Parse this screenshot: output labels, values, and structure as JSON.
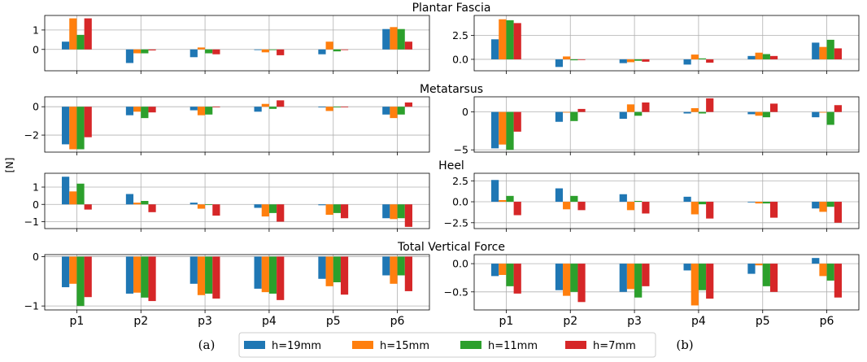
{
  "chart_data": {
    "type": "bar",
    "ylabel": "[N]",
    "categories": [
      "p1",
      "p2",
      "p3",
      "p4",
      "p5",
      "p6"
    ],
    "legend": [
      "h=19mm",
      "h=15mm",
      "h=11mm",
      "h=7mm"
    ],
    "colors": [
      "#1f77b4",
      "#ff7f0e",
      "#2ca02c",
      "#d62728"
    ],
    "panel_labels": [
      "(a)",
      "(b)"
    ],
    "rows": [
      {
        "title": "Plantar Fascia",
        "left": {
          "ylim": [
            -1.1,
            1.75
          ],
          "yticks": [
            0,
            1
          ],
          "tick_labels": [
            "0",
            "1"
          ],
          "series": [
            [
              0.4,
              -0.7,
              -0.4,
              0.0,
              -0.25,
              1.05
            ],
            [
              1.6,
              -0.2,
              0.1,
              -0.15,
              0.4,
              1.15
            ],
            [
              0.75,
              -0.2,
              -0.2,
              0.0,
              -0.1,
              1.05
            ],
            [
              1.6,
              -0.05,
              -0.25,
              -0.3,
              0.0,
              0.4
            ]
          ]
        },
        "right": {
          "ylim": [
            -1.2,
            4.6
          ],
          "yticks": [
            0,
            2.5
          ],
          "tick_labels": [
            "0.0",
            "2.5"
          ],
          "series": [
            [
              2.1,
              -0.8,
              -0.4,
              -0.55,
              0.35,
              1.75
            ],
            [
              4.2,
              0.3,
              -0.3,
              0.5,
              0.7,
              1.3
            ],
            [
              4.1,
              -0.1,
              -0.15,
              0.1,
              0.55,
              2.05
            ],
            [
              3.8,
              -0.05,
              -0.25,
              -0.35,
              0.35,
              1.15
            ]
          ]
        }
      },
      {
        "title": "Metatarsus",
        "left": {
          "ylim": [
            -3.2,
            0.7
          ],
          "yticks": [
            -2,
            0
          ],
          "tick_labels": [
            "−2",
            "0"
          ],
          "series": [
            [
              -2.65,
              -0.6,
              -0.25,
              -0.35,
              -0.05,
              -0.55
            ],
            [
              -3.0,
              -0.35,
              -0.6,
              0.2,
              -0.3,
              -0.8
            ],
            [
              -3.0,
              -0.8,
              -0.55,
              -0.15,
              -0.05,
              -0.55
            ],
            [
              -2.15,
              -0.4,
              0.0,
              0.45,
              0.0,
              0.3
            ]
          ]
        },
        "right": {
          "ylim": [
            -5.3,
            2.0
          ],
          "yticks": [
            -5,
            0
          ],
          "tick_labels": [
            "−5",
            "0"
          ],
          "series": [
            [
              -4.8,
              -1.3,
              -0.9,
              -0.2,
              -0.3,
              -0.7
            ],
            [
              -4.3,
              -0.05,
              1.0,
              0.5,
              -0.5,
              -0.05
            ],
            [
              -5.0,
              -1.2,
              -0.5,
              -0.2,
              -0.7,
              -1.7
            ],
            [
              -2.6,
              0.4,
              1.25,
              1.8,
              1.1,
              0.9
            ]
          ]
        }
      },
      {
        "title": "Heel",
        "left": {
          "ylim": [
            -1.4,
            1.8
          ],
          "yticks": [
            -1,
            0,
            1
          ],
          "tick_labels": [
            "−1",
            "0",
            "1"
          ],
          "series": [
            [
              1.6,
              0.6,
              0.1,
              -0.2,
              -0.05,
              -0.8
            ],
            [
              0.75,
              0.1,
              -0.25,
              -0.7,
              -0.6,
              -0.85
            ],
            [
              1.2,
              0.2,
              0.0,
              -0.5,
              -0.5,
              -0.8
            ],
            [
              -0.3,
              -0.45,
              -0.65,
              -1.0,
              -0.8,
              -1.3
            ]
          ]
        },
        "right": {
          "ylim": [
            -3.2,
            3.4
          ],
          "yticks": [
            -2.5,
            0,
            2.5
          ],
          "tick_labels": [
            "−2.5",
            "0.0",
            "2.5"
          ],
          "series": [
            [
              2.6,
              1.6,
              0.9,
              0.6,
              0.0,
              -0.8
            ],
            [
              0.2,
              -0.9,
              -1.0,
              -1.5,
              -0.2,
              -1.2
            ],
            [
              0.7,
              0.7,
              0.1,
              -0.3,
              -0.2,
              -0.6
            ],
            [
              -1.6,
              -1.0,
              -1.4,
              -2.0,
              -1.9,
              -2.5
            ]
          ]
        }
      },
      {
        "title": "Total Vertical Force",
        "left": {
          "ylim": [
            -1.08,
            0.04
          ],
          "yticks": [
            -1,
            0
          ],
          "tick_labels": [
            "−1",
            "0"
          ],
          "series": [
            [
              -0.62,
              -0.75,
              -0.55,
              -0.65,
              -0.45,
              -0.38
            ],
            [
              -0.55,
              -0.73,
              -0.78,
              -0.72,
              -0.6,
              -0.55
            ],
            [
              -1.0,
              -0.83,
              -0.75,
              -0.75,
              -0.52,
              -0.38
            ],
            [
              -0.82,
              -0.9,
              -0.85,
              -0.88,
              -0.77,
              -0.7
            ]
          ]
        },
        "right": {
          "ylim": [
            -0.82,
            0.16
          ],
          "yticks": [
            -0.5,
            0.0
          ],
          "tick_labels": [
            "−0.5",
            "0.0"
          ],
          "series": [
            [
              -0.22,
              -0.47,
              -0.5,
              -0.12,
              -0.18,
              0.1
            ],
            [
              -0.2,
              -0.57,
              -0.45,
              -0.74,
              -0.03,
              -0.22
            ],
            [
              -0.4,
              -0.5,
              -0.6,
              -0.47,
              -0.4,
              -0.3
            ],
            [
              -0.53,
              -0.68,
              -0.4,
              -0.62,
              -0.5,
              -0.6
            ]
          ]
        }
      }
    ]
  }
}
